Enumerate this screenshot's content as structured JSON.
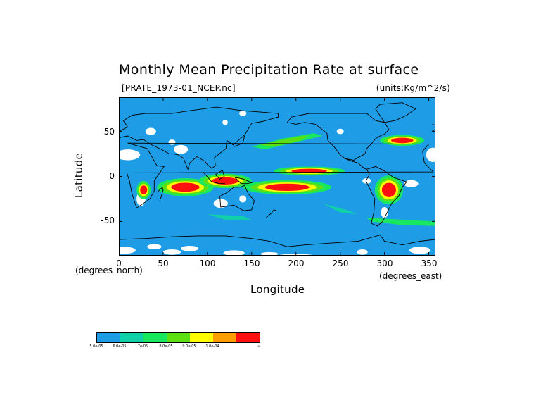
{
  "title": "Monthly Mean Precipitation Rate at surface",
  "file_label": "[PRATE_1973-01_NCEP.nc]",
  "units_label": "(units:Kg/m^2/s)",
  "x_axis": {
    "title": "Longitude",
    "unit_label": "(degrees_east)",
    "ticks": [
      "0",
      "50",
      "100",
      "150",
      "200",
      "250",
      "300",
      "350"
    ],
    "range": [
      0,
      357.5
    ]
  },
  "y_axis": {
    "title": "Latitude",
    "unit_label": "(degrees_north)",
    "ticks": [
      "50",
      "0",
      "-50"
    ],
    "range": [
      -88,
      88
    ]
  },
  "colors": {
    "ocean_base": "#1e9ce6",
    "missing": "#ffffff",
    "coast": "#000000"
  },
  "legend": {
    "colors": [
      "#1e9ce6",
      "#10d0a8",
      "#18e860",
      "#5ce014",
      "#ffff00",
      "#ff9c00",
      "#ff1010"
    ],
    "labels": [
      "5.0e-05",
      "6.0e-05",
      "7e-05",
      "8.0e-05",
      "9.0e-05",
      "1.0e-04",
      "∞"
    ]
  },
  "chart_data": {
    "type": "heatmap",
    "title": "Monthly Mean Precipitation Rate at surface",
    "xlabel": "Longitude",
    "ylabel": "Latitude",
    "xlim": [
      0,
      357.5
    ],
    "ylim": [
      -88,
      88
    ],
    "x_ticks": [
      0,
      50,
      100,
      150,
      200,
      250,
      300,
      350
    ],
    "y_ticks": [
      -50,
      0,
      50
    ],
    "legend_labels": [
      "5.0e-05",
      "6.0e-05",
      "7e-05",
      "8.0e-05",
      "9.0e-05",
      "1.0e-04",
      "∞"
    ],
    "regions": [
      {
        "lon": [
          180,
          250
        ],
        "lat": [
          3,
          9
        ],
        "level": 6
      },
      {
        "lon": [
          140,
          230
        ],
        "lat": [
          -20,
          -4
        ],
        "level": 6
      },
      {
        "lon": [
          45,
          105
        ],
        "lat": [
          -20,
          -3
        ],
        "level": 6
      },
      {
        "lon": [
          90,
          150
        ],
        "lat": [
          -12,
          2
        ],
        "level": 5
      },
      {
        "lon": [
          290,
          320
        ],
        "lat": [
          -30,
          0
        ],
        "level": 6
      },
      {
        "lon": [
          20,
          35
        ],
        "lat": [
          -25,
          -5
        ],
        "level": 5
      },
      {
        "lon": [
          300,
          340
        ],
        "lat": [
          30,
          50
        ],
        "level": 5
      },
      {
        "lon": [
          150,
          220
        ],
        "lat": [
          30,
          50
        ],
        "level": 3
      },
      {
        "lon": [
          270,
          360
        ],
        "lat": [
          -58,
          -42
        ],
        "level": 2
      }
    ]
  }
}
